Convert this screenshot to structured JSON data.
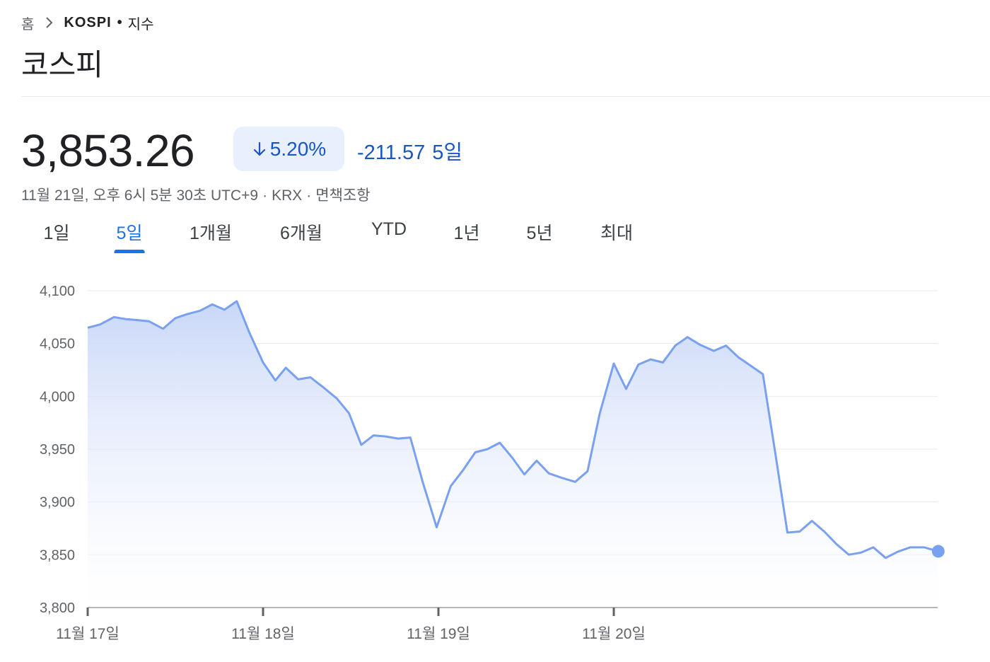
{
  "breadcrumb": {
    "home": "홈",
    "current": "KOSPI",
    "separator": "•",
    "type": "지수"
  },
  "title": "코스피",
  "quote": {
    "price": "3,853.26",
    "change_percent": "5.20%",
    "change_direction": "down",
    "change_value": "-211.57",
    "change_period": "5일",
    "down_color": "#1a56c2"
  },
  "meta": {
    "timestamp": "11월 21일, 오후 6시 5분 30초 UTC+9",
    "exchange": "KRX",
    "disclaimer": "면책조항"
  },
  "tabs": [
    {
      "label": "1일",
      "active": false
    },
    {
      "label": "5일",
      "active": true
    },
    {
      "label": "1개월",
      "active": false
    },
    {
      "label": "6개월",
      "active": false
    },
    {
      "label": "YTD",
      "active": false
    },
    {
      "label": "1년",
      "active": false
    },
    {
      "label": "5년",
      "active": false
    },
    {
      "label": "최대",
      "active": false
    }
  ],
  "chart_data": {
    "type": "area",
    "title": "",
    "xlabel": "",
    "ylabel": "",
    "ylim": [
      3800,
      4100
    ],
    "yticks": [
      4100,
      4050,
      4000,
      3950,
      3900,
      3850,
      3800
    ],
    "ytick_labels": [
      "4,100",
      "4,050",
      "4,000",
      "3,950",
      "3,900",
      "3,850",
      "3,800"
    ],
    "xticks": [
      {
        "x": 0,
        "label": "11월 17일"
      },
      {
        "x": 1,
        "label": "11월 18일"
      },
      {
        "x": 2,
        "label": "11월 19일"
      },
      {
        "x": 3,
        "label": "11월 20일"
      }
    ],
    "x_range": [
      0,
      4.85
    ],
    "grid": true,
    "line_color": "#7aa0f0",
    "series": [
      {
        "points": [
          [
            0,
            4065
          ],
          [
            0.07,
            4068
          ],
          [
            0.15,
            4075
          ],
          [
            0.22,
            4073
          ],
          [
            0.29,
            4072
          ],
          [
            0.35,
            4071
          ],
          [
            0.43,
            4064
          ],
          [
            0.5,
            4074
          ],
          [
            0.57,
            4078
          ],
          [
            0.64,
            4081
          ],
          [
            0.71,
            4087
          ],
          [
            0.78,
            4082
          ],
          [
            0.85,
            4090
          ],
          [
            0.92,
            4061
          ],
          [
            1.0,
            4032
          ],
          [
            1.07,
            4015
          ],
          [
            1.13,
            4027
          ],
          [
            1.2,
            4016
          ],
          [
            1.27,
            4018
          ],
          [
            1.34,
            4009
          ],
          [
            1.42,
            3998
          ],
          [
            1.49,
            3984
          ],
          [
            1.56,
            3954
          ],
          [
            1.63,
            3963
          ],
          [
            1.7,
            3962
          ],
          [
            1.77,
            3960
          ],
          [
            1.84,
            3961
          ],
          [
            1.91,
            3919
          ],
          [
            1.99,
            3876
          ],
          [
            2.07,
            3915
          ],
          [
            2.14,
            3930
          ],
          [
            2.21,
            3947
          ],
          [
            2.28,
            3950
          ],
          [
            2.35,
            3956
          ],
          [
            2.42,
            3942
          ],
          [
            2.49,
            3926
          ],
          [
            2.56,
            3939
          ],
          [
            2.63,
            3927
          ],
          [
            2.7,
            3923
          ],
          [
            2.78,
            3919
          ],
          [
            2.85,
            3929
          ],
          [
            2.92,
            3984
          ],
          [
            3.0,
            4031
          ],
          [
            3.07,
            4007
          ],
          [
            3.14,
            4030
          ],
          [
            3.21,
            4035
          ],
          [
            3.28,
            4032
          ],
          [
            3.35,
            4048
          ],
          [
            3.42,
            4056
          ],
          [
            3.49,
            4049
          ],
          [
            3.57,
            4043
          ],
          [
            3.64,
            4048
          ],
          [
            3.71,
            4037
          ],
          [
            3.78,
            4029
          ],
          [
            3.85,
            4021
          ],
          [
            3.92,
            3947
          ],
          [
            3.99,
            3871
          ],
          [
            4.06,
            3872
          ],
          [
            4.13,
            3882
          ],
          [
            4.2,
            3872
          ],
          [
            4.27,
            3860
          ],
          [
            4.34,
            3850
          ],
          [
            4.41,
            3852
          ],
          [
            4.48,
            3857
          ],
          [
            4.55,
            3847
          ],
          [
            4.62,
            3853
          ],
          [
            4.69,
            3857
          ],
          [
            4.77,
            3857
          ],
          [
            4.85,
            3853.26
          ]
        ]
      }
    ]
  }
}
